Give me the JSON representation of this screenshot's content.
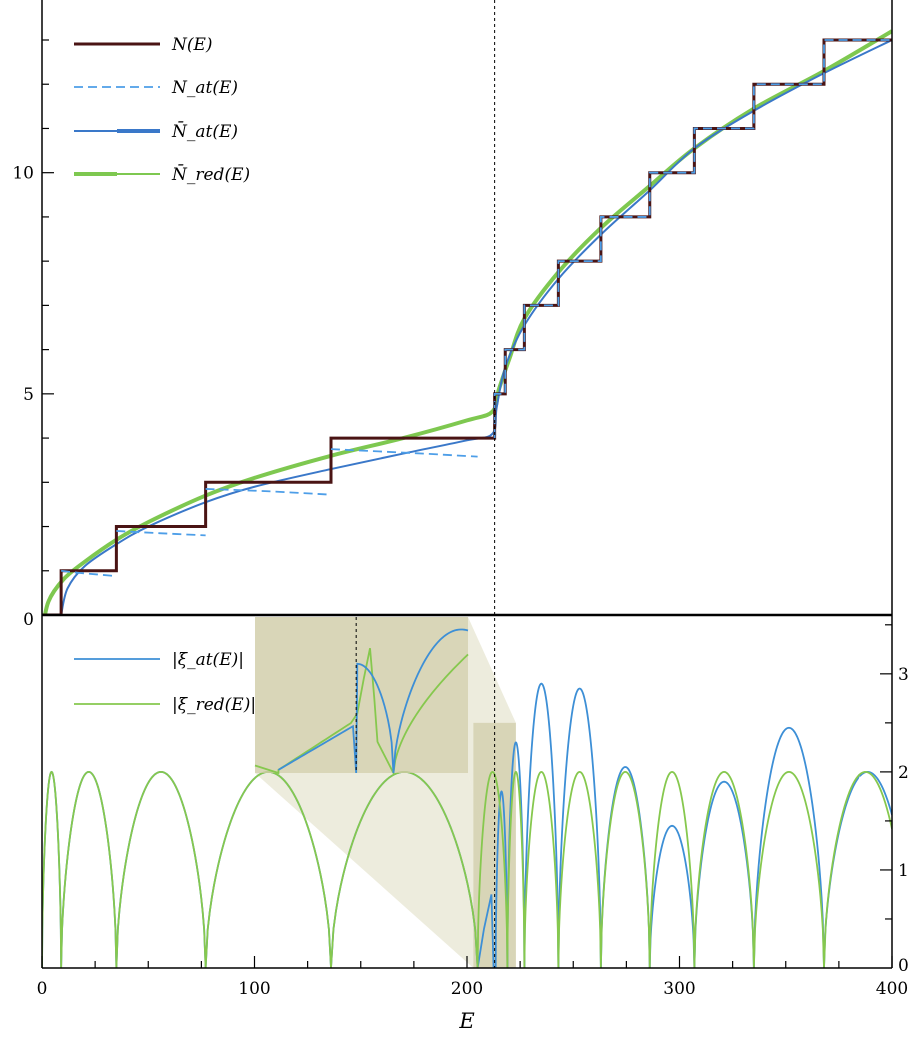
{
  "chart_data": [
    {
      "panel": "top",
      "type": "line",
      "xlim": [
        0,
        400
      ],
      "ylim": [
        0,
        13
      ],
      "yticks": [
        {
          "value": 0,
          "label": "0"
        },
        {
          "value": 5,
          "label": "5"
        },
        {
          "value": 10,
          "label": "10"
        }
      ],
      "reference_line_x": 213,
      "legend_position": "top-left",
      "series": [
        {
          "key": "N",
          "name": "N(E)",
          "style": "step",
          "color": "#4a1414",
          "x": [
            0,
            9,
            9,
            35,
            35,
            77,
            77,
            136,
            136,
            213,
            213,
            218,
            218,
            227,
            227,
            243,
            243,
            263,
            263,
            286,
            286,
            307,
            307,
            335,
            335,
            368,
            368,
            400
          ],
          "y": [
            0,
            0,
            1,
            1,
            2,
            2,
            3,
            3,
            4,
            4,
            5,
            5,
            6,
            6,
            7,
            7,
            8,
            8,
            9,
            9,
            10,
            10,
            11,
            11,
            12,
            12,
            13,
            13
          ]
        },
        {
          "key": "Nat",
          "name": "N_at(E)",
          "style": "dashed",
          "color": "#4d9ee8",
          "segments": [
            {
              "x": [
                9,
                18,
                35
              ],
              "y": [
                1,
                0.95,
                0.88
              ]
            },
            {
              "x": [
                35,
                55,
                77
              ],
              "y": [
                1.9,
                1.85,
                1.8
              ]
            },
            {
              "x": [
                77,
                105,
                136
              ],
              "y": [
                2.85,
                2.8,
                2.72
              ]
            },
            {
              "x": [
                136,
                175,
                205
              ],
              "y": [
                3.75,
                3.66,
                3.58
              ]
            },
            {
              "x": [
                213,
                400
              ],
              "y": [
                5,
                13
              ]
            }
          ]
        },
        {
          "key": "Nbar_at",
          "name": "N̄_at(E)",
          "style": "smooth",
          "color": "#3a78c9",
          "x": [
            9,
            12,
            20,
            35,
            50,
            77,
            100,
            136,
            170,
            200,
            212,
            214,
            218,
            227,
            243,
            263,
            286,
            307,
            335,
            368,
            400
          ],
          "y": [
            0,
            0.6,
            1.1,
            1.6,
            2.0,
            2.55,
            2.9,
            3.3,
            3.65,
            3.95,
            4.1,
            4.7,
            5.6,
            6.55,
            7.6,
            8.6,
            9.6,
            10.55,
            11.4,
            12.25,
            13.0
          ]
        },
        {
          "key": "Nbar_red",
          "name": "N̄_red(E)",
          "style": "smooth",
          "color": "#7ec850",
          "x": [
            0,
            3,
            10,
            20,
            35,
            50,
            77,
            100,
            136,
            170,
            200,
            212,
            215,
            220,
            227,
            243,
            263,
            286,
            307,
            335,
            368,
            400
          ],
          "y": [
            -0.4,
            0.3,
            0.8,
            1.2,
            1.7,
            2.1,
            2.7,
            3.1,
            3.6,
            4.0,
            4.4,
            4.6,
            5.1,
            5.8,
            6.7,
            7.75,
            8.75,
            9.7,
            10.55,
            11.45,
            12.3,
            13.2
          ]
        }
      ],
      "legend": [
        {
          "label": "N(E)",
          "series": "N"
        },
        {
          "label": "N_at(E)",
          "series": "Nat"
        },
        {
          "label": "N̄_at(E)",
          "series": "Nbar_at"
        },
        {
          "label": "N̄_red(E)",
          "series": "Nbar_red"
        }
      ]
    },
    {
      "panel": "bottom",
      "type": "line",
      "xlim": [
        0,
        400
      ],
      "ylim": [
        0,
        3.6
      ],
      "xlabel": "E",
      "xticks": [
        {
          "value": 0,
          "label": "0"
        },
        {
          "value": 100,
          "label": "100"
        },
        {
          "value": 200,
          "label": "200"
        },
        {
          "value": 300,
          "label": "300"
        },
        {
          "value": 400,
          "label": "400"
        }
      ],
      "yticks_right": [
        {
          "value": 0,
          "label": "0"
        },
        {
          "value": 1,
          "label": "1"
        },
        {
          "value": 2,
          "label": "2"
        },
        {
          "value": 3,
          "label": "3"
        }
      ],
      "reference_line_x": 213,
      "legend_position": "top-left",
      "zeros_red": [
        0,
        9,
        35,
        77,
        136,
        205,
        219,
        227,
        243,
        263,
        286,
        307,
        335,
        368
      ],
      "zeros_at_extra": [
        212.5
      ],
      "arch_peak_red": 2.0,
      "right_arches_at": [
        {
          "x0": 213.5,
          "x1": 219,
          "peak": 1.8
        },
        {
          "x0": 219,
          "x1": 227,
          "peak": 2.3
        },
        {
          "x0": 227,
          "x1": 243,
          "peak": 2.9
        },
        {
          "x0": 243,
          "x1": 263,
          "peak": 2.85
        },
        {
          "x0": 263,
          "x1": 286,
          "peak": 2.05
        },
        {
          "x0": 286,
          "x1": 307,
          "peak": 1.45
        },
        {
          "x0": 307,
          "x1": 335,
          "peak": 1.9
        },
        {
          "x0": 335,
          "x1": 368,
          "peak": 2.45
        },
        {
          "x0": 368,
          "x1": 400,
          "peak": 2.0,
          "end": 1.0
        }
      ],
      "red_tail_end": 0.7,
      "zoom_window": {
        "x": [
          203,
          223
        ],
        "y": [
          0,
          2.5
        ]
      },
      "series": [
        {
          "key": "xi_at",
          "name": "|ξ_at(E)|",
          "color": "#3d8fd6"
        },
        {
          "key": "xi_red",
          "name": "|ξ_red(E)|",
          "color": "#86c84e"
        }
      ],
      "legend": [
        {
          "label": "|ξ_at(E)|",
          "series": "xi_at"
        },
        {
          "label": "|ξ_red(E)|",
          "series": "xi_red"
        }
      ]
    }
  ]
}
